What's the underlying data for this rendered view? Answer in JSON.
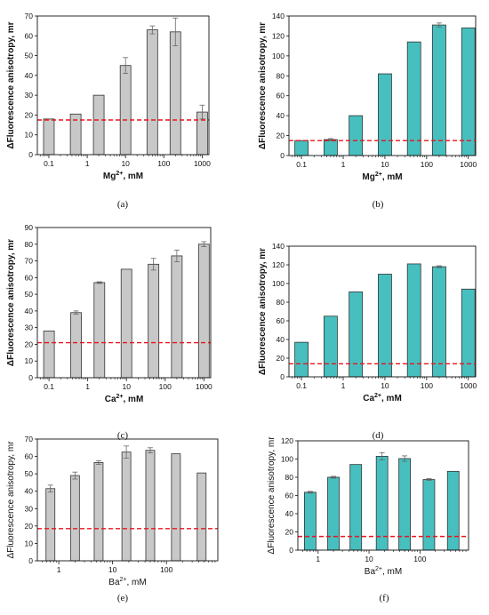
{
  "panels": [
    {
      "caption": "(a)",
      "chart_data": {
        "type": "bar",
        "ylabel": "ΔFluorescence anisotropy, mr",
        "xlabel_base": "Mg",
        "xlabel_sup": "2+",
        "xlabel_tail": ", mM",
        "x_scale": "log",
        "xlim": [
          0.05,
          1500
        ],
        "xticks": [
          0.1,
          1,
          10,
          100,
          1000
        ],
        "xtick_labels": [
          "0.1",
          "1",
          "10",
          "100",
          "1000"
        ],
        "ylim": [
          0,
          70
        ],
        "yticks": [
          0,
          10,
          20,
          30,
          40,
          50,
          60,
          70
        ],
        "x": [
          0.1,
          0.5,
          2,
          10,
          50,
          200,
          1000
        ],
        "values": [
          18,
          20.5,
          30,
          45,
          63,
          62,
          21.5
        ],
        "errors": [
          0,
          0,
          0,
          4,
          2,
          7,
          3.5
        ],
        "baseline": 17.5,
        "bar_color": "#c8c8c8",
        "baseline_color": "#e8141c"
      }
    },
    {
      "caption": "(b)",
      "chart_data": {
        "type": "bar",
        "ylabel": "ΔFluorescence anisotropy, mr",
        "xlabel_base": "Mg",
        "xlabel_sup": "2+",
        "xlabel_tail": ", mM",
        "x_scale": "log",
        "xlim": [
          0.05,
          1500
        ],
        "xticks": [
          0.1,
          1,
          10,
          100,
          1000
        ],
        "xtick_labels": [
          "0.1",
          "1",
          "10",
          "100",
          "1000"
        ],
        "ylim": [
          0,
          140
        ],
        "yticks": [
          0,
          20,
          40,
          60,
          80,
          100,
          120,
          140
        ],
        "x": [
          0.1,
          0.5,
          2,
          10,
          50,
          200,
          1000
        ],
        "values": [
          15,
          16,
          40,
          82,
          114,
          131,
          128
        ],
        "errors": [
          0,
          1,
          0,
          0,
          0,
          2,
          0
        ],
        "baseline": 15,
        "bar_color": "#47bfbf",
        "baseline_color": "#e8141c"
      }
    },
    {
      "caption": "(c)",
      "chart_data": {
        "type": "bar",
        "ylabel": "ΔFluorescence anisotropy, mr",
        "xlabel_base": "Ca",
        "xlabel_sup": "2+",
        "xlabel_tail": ", mM",
        "x_scale": "log",
        "xlim": [
          0.05,
          1500
        ],
        "xticks": [
          0.1,
          1,
          10,
          100,
          1000
        ],
        "xtick_labels": [
          "0.1",
          "1",
          "10",
          "100",
          "1000"
        ],
        "ylim": [
          0,
          90
        ],
        "yticks": [
          0,
          10,
          20,
          30,
          40,
          50,
          60,
          70,
          80,
          90
        ],
        "x": [
          0.1,
          0.5,
          2,
          10,
          50,
          200,
          1000
        ],
        "values": [
          28,
          39,
          57,
          65,
          68,
          73,
          80
        ],
        "errors": [
          0,
          1,
          0.5,
          0,
          3.5,
          3.5,
          1.5
        ],
        "baseline": 21,
        "bar_color": "#c8c8c8",
        "baseline_color": "#e8141c"
      }
    },
    {
      "caption": "(d)",
      "chart_data": {
        "type": "bar",
        "ylabel": "ΔFluorescence anisotropy, mr",
        "xlabel_base": "Ca",
        "xlabel_sup": "2+",
        "xlabel_tail": ", mM",
        "x_scale": "log",
        "xlim": [
          0.05,
          1500
        ],
        "xticks": [
          0.1,
          1,
          10,
          100,
          1000
        ],
        "xtick_labels": [
          "0.1",
          "1",
          "10",
          "100",
          "1000"
        ],
        "ylim": [
          0,
          140
        ],
        "yticks": [
          0,
          20,
          40,
          60,
          80,
          100,
          120,
          140
        ],
        "x": [
          0.1,
          0.5,
          2,
          10,
          50,
          200,
          1000
        ],
        "values": [
          37,
          65,
          91,
          110,
          121,
          118,
          94
        ],
        "errors": [
          0,
          0,
          0,
          0,
          0,
          1,
          0
        ],
        "baseline": 14,
        "bar_color": "#47bfbf",
        "baseline_color": "#e8141c"
      }
    },
    {
      "caption": "(e)",
      "chart_data": {
        "type": "bar",
        "ylabel": "ΔFluorescence anisotropy, mr",
        "xlabel_base": "Ba",
        "xlabel_sup": "2+",
        "xlabel_tail": ", mM",
        "x_scale": "log",
        "xlim": [
          0.4,
          900
        ],
        "xticks": [
          1,
          10,
          100
        ],
        "xtick_labels": [
          "1",
          "10",
          "100"
        ],
        "ylim": [
          0,
          70
        ],
        "yticks": [
          0,
          10,
          20,
          30,
          40,
          50,
          60,
          70
        ],
        "x": [
          0.7,
          2,
          5.5,
          18,
          50,
          150,
          450
        ],
        "values": [
          41.5,
          49,
          56.5,
          62.5,
          63.5,
          61.5,
          50.5
        ],
        "errors": [
          2,
          2,
          1,
          3.5,
          1.5,
          0,
          0
        ],
        "baseline": 18.5,
        "bar_color": "#c8c8c8",
        "baseline_color": "#e8141c"
      }
    },
    {
      "caption": "(f)",
      "chart_data": {
        "type": "bar",
        "ylabel": "ΔFluorescence anisotropy, mr",
        "xlabel_base": "Ba",
        "xlabel_sup": "2+",
        "xlabel_tail": ", mM",
        "x_scale": "log",
        "xlim": [
          0.4,
          900
        ],
        "xticks": [
          1,
          10,
          100
        ],
        "xtick_labels": [
          "1",
          "10",
          "100"
        ],
        "ylim": [
          0,
          120
        ],
        "yticks": [
          0,
          20,
          40,
          60,
          80,
          100,
          120
        ],
        "x": [
          0.7,
          2,
          5.5,
          18,
          50,
          150,
          450
        ],
        "values": [
          63.5,
          80,
          94,
          103,
          100.5,
          77.5,
          86.5
        ],
        "errors": [
          1,
          1,
          0,
          4,
          3,
          1,
          0
        ],
        "baseline": 15,
        "bar_color": "#47bfbf",
        "baseline_color": "#e8141c"
      }
    }
  ]
}
